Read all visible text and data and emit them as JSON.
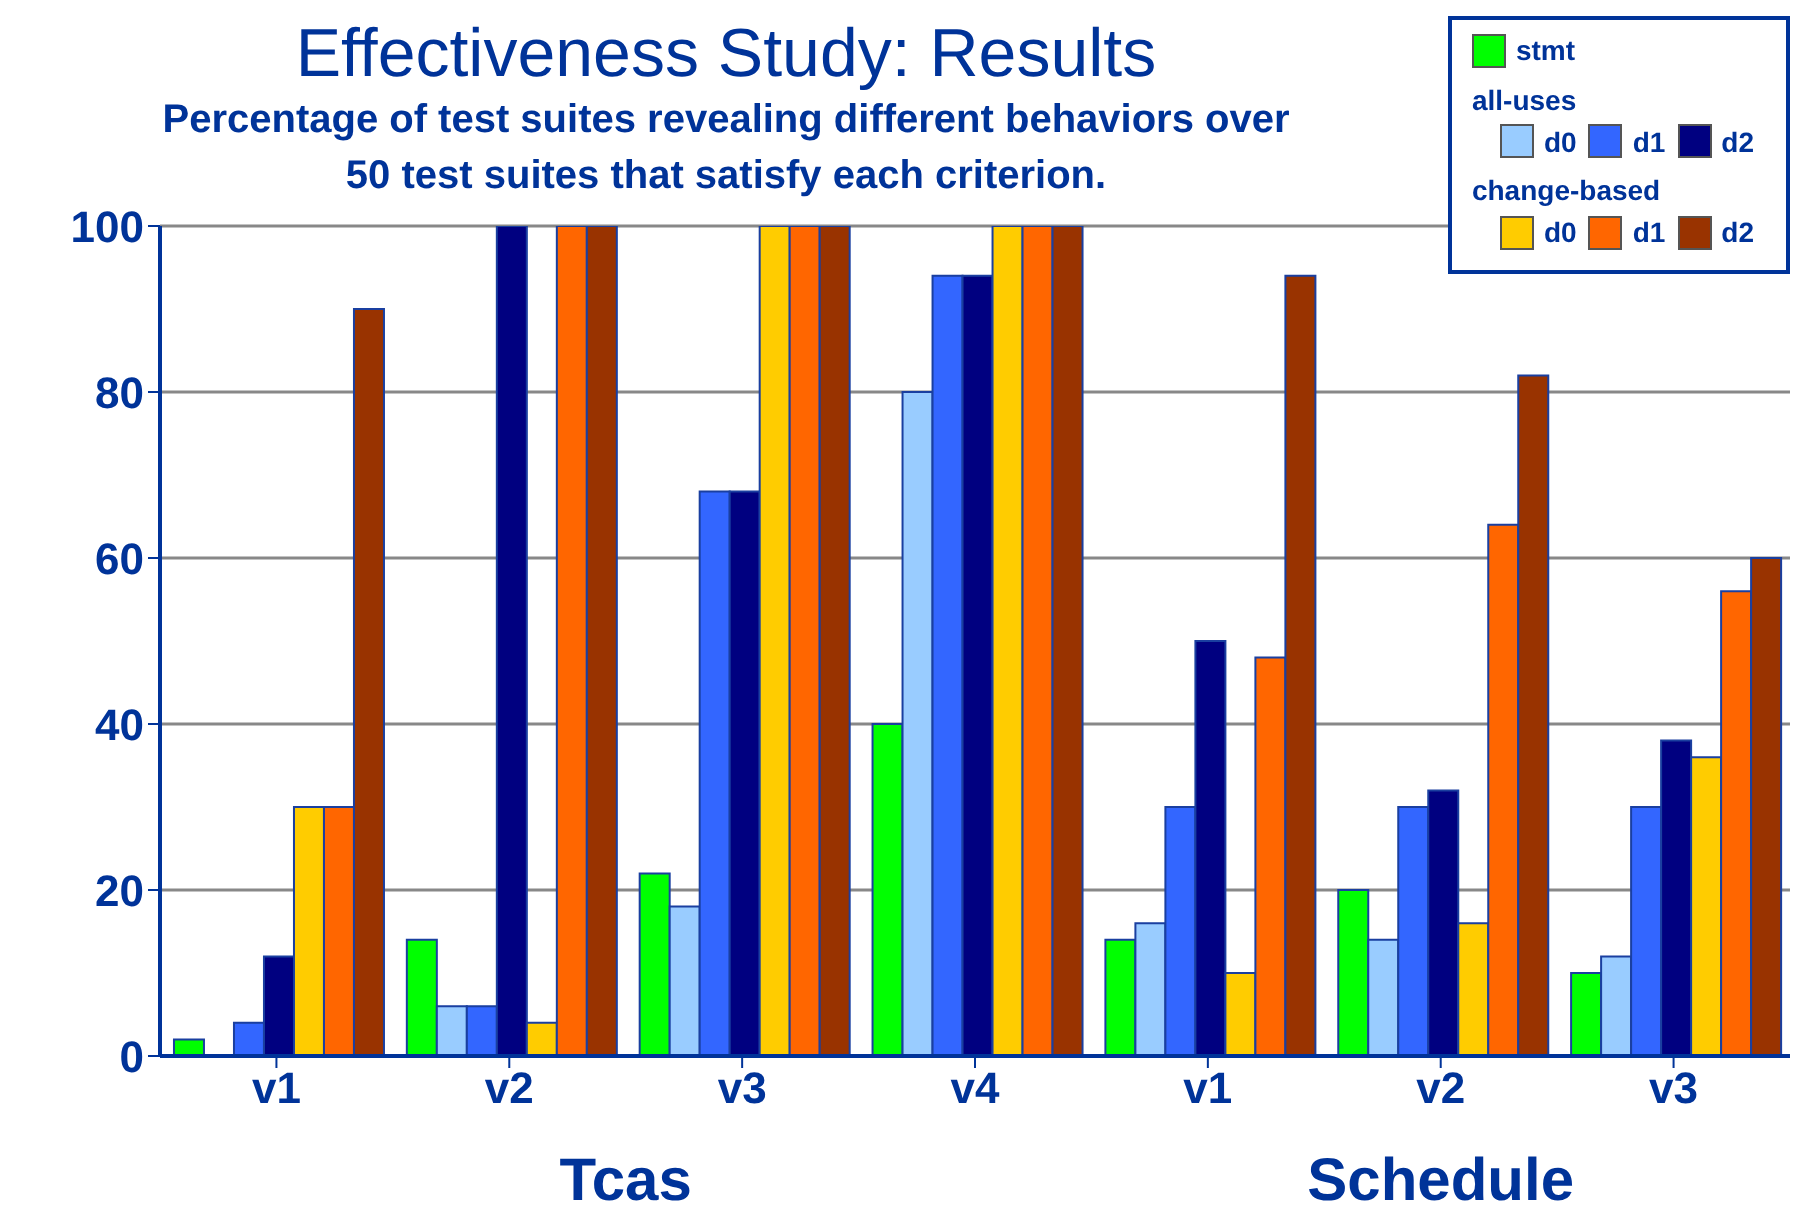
{
  "chart_data": {
    "type": "bar",
    "title": "Effectiveness Study:  Results",
    "subtitle": "Percentage of test suites revealing different behaviors over 50 test suites that satisfy each criterion.",
    "categories": [
      "v1",
      "v2",
      "v3",
      "v4",
      "v1",
      "v2",
      "v3"
    ],
    "series": [
      {
        "name": "stmt",
        "color": "#00ff00",
        "values": [
          2,
          14,
          22,
          40,
          14,
          20,
          10
        ]
      },
      {
        "name": "d0",
        "color": "#99ccff",
        "values": [
          0,
          6,
          18,
          80,
          16,
          14,
          12
        ]
      },
      {
        "name": "d1",
        "color": "#3366ff",
        "values": [
          4,
          6,
          68,
          94,
          30,
          30,
          30
        ]
      },
      {
        "name": "d2",
        "color": "#000080",
        "values": [
          12,
          100,
          68,
          94,
          50,
          32,
          38
        ]
      },
      {
        "name": "d0",
        "color": "#ffcc00",
        "values": [
          30,
          4,
          100,
          100,
          10,
          16,
          36
        ]
      },
      {
        "name": "d1",
        "color": "#ff6600",
        "values": [
          30,
          100,
          100,
          100,
          48,
          64,
          56
        ]
      },
      {
        "name": "d2",
        "color": "#993300",
        "values": [
          90,
          100,
          100,
          100,
          94,
          82,
          60
        ]
      }
    ],
    "annotations": [
      "all-uses",
      "change-based",
      "Tcas",
      "Schedule"
    ],
    "ylim": [
      0,
      100
    ],
    "yticks": [
      0,
      20,
      40,
      60,
      80,
      100
    ],
    "grid": "y",
    "legend": "top right"
  }
}
